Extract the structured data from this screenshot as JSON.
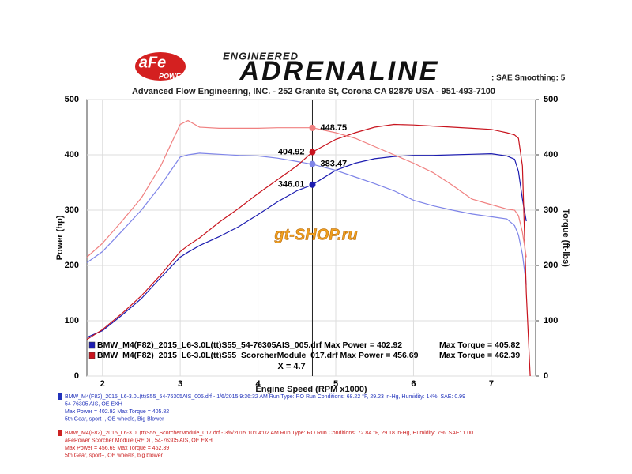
{
  "header": {
    "brand": "aFe",
    "brand_sub": "POWER",
    "logo_top": "ENGINEERED",
    "logo_main": "ADRENALINE",
    "settings": ": SAE  Smoothing: 5",
    "address": "Advanced Flow Engineering, INC. - 252 Granite St, Corona CA 92879 USA - 951-493-7100"
  },
  "watermark": "gt-SHOP.ru",
  "chart_data": {
    "type": "line",
    "x_label": "Engine Speed (RPM x1000)",
    "y_label": "Power (hp)",
    "y2_label": "Torque (ft-lbs)",
    "xlim": [
      1.8,
      7.57
    ],
    "xticks": [
      2,
      3,
      4,
      5,
      6,
      7
    ],
    "ylim": [
      0,
      500
    ],
    "yticks": [
      0,
      100,
      200,
      300,
      400,
      500
    ],
    "y2lim": [
      0,
      500
    ],
    "y2ticks": [
      0,
      100,
      200,
      300,
      400,
      500
    ],
    "grid": true,
    "x": [
      1.8,
      2,
      2.25,
      2.5,
      2.75,
      3,
      3.1,
      3.25,
      3.5,
      3.75,
      4,
      4.25,
      4.5,
      4.7,
      5,
      5.25,
      5.5,
      5.75,
      6,
      6.25,
      6.5,
      6.75,
      7,
      7.2,
      7.3,
      7.35,
      7.4,
      7.45,
      7.5
    ],
    "series": [
      {
        "color": "#1c1cb0",
        "cursor_value": 346.01,
        "values": [
          70,
          82,
          110,
          140,
          178,
          215,
          224,
          236,
          252,
          270,
          292,
          315,
          335,
          346,
          372,
          385,
          393,
          397,
          399,
          399,
          400,
          401,
          402,
          398,
          392,
          370,
          320,
          280,
          null
        ]
      },
      {
        "color": "#7f85e8",
        "axis": "y2",
        "cursor_value": 383.47,
        "values": [
          205,
          225,
          262,
          300,
          345,
          396,
          400,
          403,
          401,
          399,
          398,
          394,
          388,
          383,
          372,
          360,
          348,
          335,
          318,
          308,
          300,
          293,
          288,
          284,
          272,
          255,
          220,
          165,
          null
        ]
      },
      {
        "color": "#c8141e",
        "cursor_value": 404.92,
        "values": [
          66,
          84,
          113,
          145,
          183,
          225,
          236,
          250,
          278,
          303,
          330,
          355,
          380,
          405,
          428,
          440,
          450,
          455,
          454,
          452,
          450,
          448,
          446,
          440,
          436,
          430,
          380,
          150,
          0
        ]
      },
      {
        "color": "#f08080",
        "axis": "y2",
        "cursor_value": 448.75,
        "values": [
          215,
          240,
          280,
          322,
          380,
          455,
          462,
          450,
          448,
          448,
          448,
          449,
          449,
          449,
          440,
          430,
          415,
          400,
          385,
          368,
          345,
          320,
          310,
          302,
          300,
          290,
          260,
          215,
          null
        ]
      }
    ],
    "cursor": {
      "x": 4.7,
      "label": "X = 4.7"
    },
    "legend": [
      {
        "color": "#1c1cb0",
        "file": "BMW_M4(F82)_2015_L6-3.0L(tt)S55_54-76305AIS_005.drf Max Power = 402.92",
        "max_torque": "Max Torque = 405.82"
      },
      {
        "color": "#c8141e",
        "file": "BMW_M4(F82)_2015_L6-3.0L(tt)S55_ScorcherModule_017.drf Max Power = 456.69",
        "max_torque": "Max Torque = 462.39"
      }
    ]
  },
  "notes": [
    {
      "color": "#2233bb",
      "lines": [
        "BMW_M4(F82)_2015_L6-3.0L(tt)S55_54-76305AIS_005.drf - 1/6/2015 9:36:32 AM  Run Type: RO  Run Conditions: 68.22 °F, 29.23 in-Hg,  Humidity:  14%, SAE: 0.99",
        "54-76305 AIS, OE EXH",
        "Max Power = 402.92  Max Torque = 405.82",
        "5th Gear, sport+, OE wheels, Big Blower"
      ]
    },
    {
      "color": "#cc2222",
      "lines": [
        "BMW_M4(F82)_2015_L6-3.0L(tt)S55_ScorcherModule_017.drf - 3/6/2015 10:04:02 AM  Run Type: RO  Run Conditions: 72.84 °F, 29.18 in-Hg,  Humidity:  7%, SAE: 1.00",
        "aFePower Scorcher Module (RED) , 54-76305 AIS, OE EXH",
        "Max Power = 456.69  Max Torque = 462.39",
        "5th Gear, sport+, OE wheels, big blower"
      ]
    }
  ]
}
